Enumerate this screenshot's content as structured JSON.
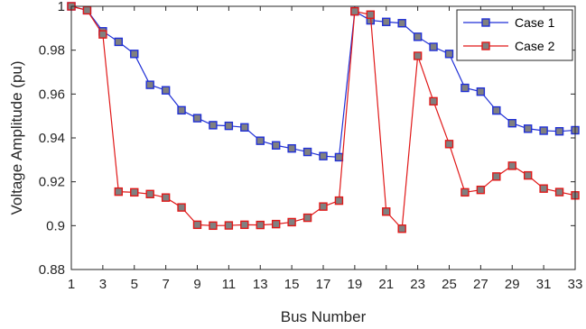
{
  "chart_data": {
    "type": "line",
    "title": "",
    "xlabel": "Bus Number",
    "ylabel": "Voltage Amplitude (pu)",
    "xlim": [
      1,
      33
    ],
    "ylim": [
      0.88,
      1.0
    ],
    "xticks": [
      1,
      3,
      5,
      7,
      9,
      11,
      13,
      15,
      17,
      19,
      21,
      23,
      25,
      27,
      29,
      31,
      33
    ],
    "yticks": [
      0.88,
      0.9,
      0.92,
      0.94,
      0.96,
      0.98,
      1
    ],
    "ytick_labels": [
      "0.88",
      "0.9",
      "0.92",
      "0.94",
      "0.96",
      "0.98",
      "1"
    ],
    "grid": false,
    "legend_position": "top-right",
    "x": [
      1,
      2,
      3,
      4,
      5,
      6,
      7,
      8,
      9,
      10,
      11,
      12,
      13,
      14,
      15,
      16,
      17,
      18,
      19,
      20,
      21,
      22,
      23,
      24,
      25,
      26,
      27,
      28,
      29,
      30,
      31,
      32,
      33
    ],
    "series": [
      {
        "name": "Case 1",
        "color": "#1f2fd6",
        "marker_fill": "#808080",
        "values": [
          1.0,
          0.9982,
          0.9886,
          0.9838,
          0.9783,
          0.9642,
          0.9617,
          0.9526,
          0.949,
          0.9458,
          0.9455,
          0.9448,
          0.9387,
          0.9366,
          0.9352,
          0.9336,
          0.9317,
          0.9312,
          0.9977,
          0.9936,
          0.9929,
          0.9923,
          0.9861,
          0.9815,
          0.9783,
          0.9628,
          0.9611,
          0.9525,
          0.9467,
          0.9442,
          0.9433,
          0.943,
          0.9435
        ]
      },
      {
        "name": "Case 2",
        "color": "#e01818",
        "marker_fill": "#808080",
        "values": [
          1.0,
          0.9982,
          0.9872,
          0.9155,
          0.9152,
          0.9144,
          0.9128,
          0.9083,
          0.9004,
          0.9,
          0.9001,
          0.9004,
          0.9003,
          0.9007,
          0.9016,
          0.9036,
          0.9087,
          0.9114,
          0.9977,
          0.9962,
          0.9064,
          0.8986,
          0.9774,
          0.9567,
          0.9372,
          0.9152,
          0.9163,
          0.9224,
          0.9273,
          0.9229,
          0.9169,
          0.9153,
          0.9138
        ]
      }
    ]
  }
}
